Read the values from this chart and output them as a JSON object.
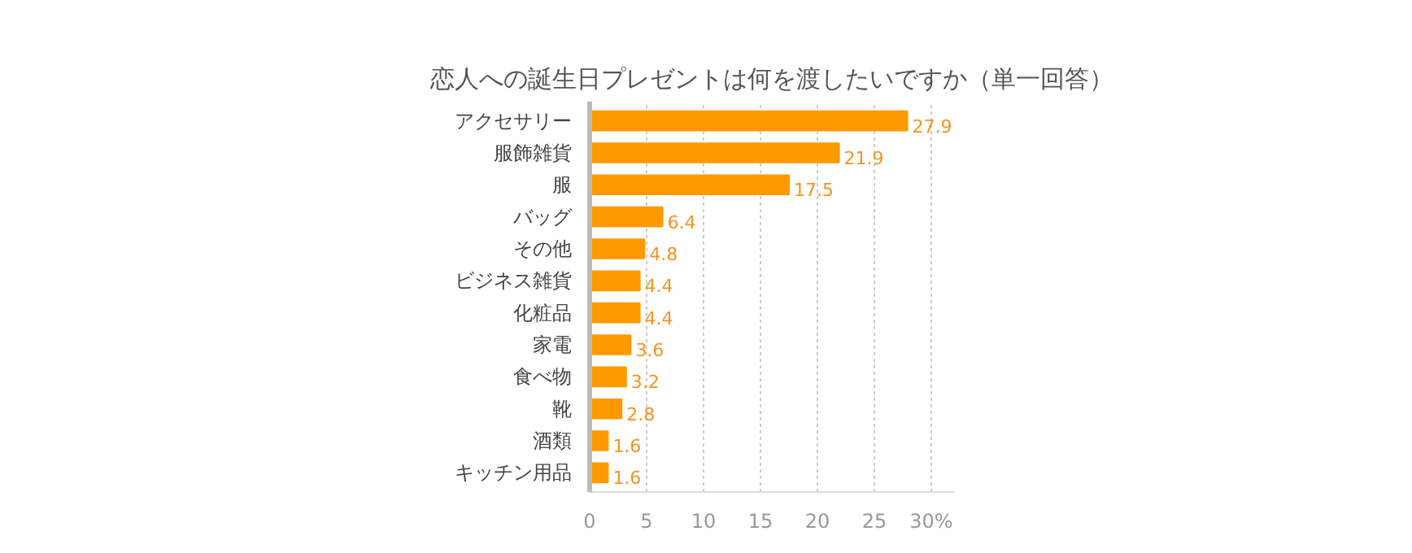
{
  "chart_data": {
    "type": "bar",
    "orientation": "horizontal",
    "title": "恋人への誕生日プレゼントは何を渡したいですか（単一回答）",
    "categories": [
      "アクセサリー",
      "服飾雑貨",
      "服",
      "バッグ",
      "その他",
      "ビジネス雑貨",
      "化粧品",
      "家電",
      "食べ物",
      "靴",
      "酒類",
      "キッチン用品"
    ],
    "values": [
      27.9,
      21.9,
      17.5,
      6.4,
      4.8,
      4.4,
      4.4,
      3.6,
      3.2,
      2.8,
      1.6,
      1.6
    ],
    "color": "#ff9900",
    "data_labels": true,
    "xlim": [
      0,
      32
    ],
    "xticks": [
      0,
      5,
      10,
      15,
      20,
      25,
      {
        "value": 30,
        "label": "30%"
      }
    ],
    "grid": "x"
  }
}
